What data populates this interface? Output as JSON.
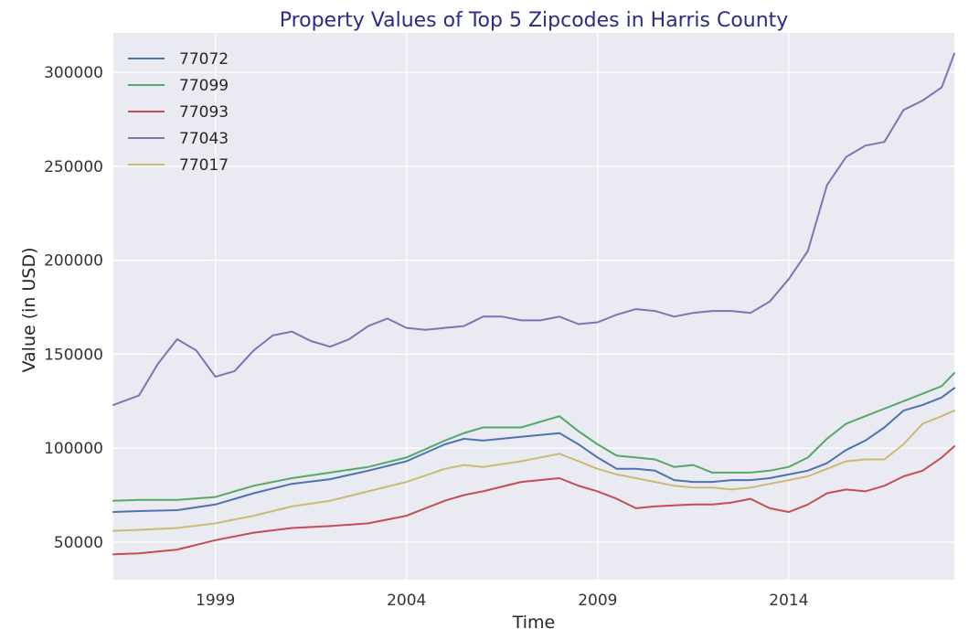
{
  "chart_data": {
    "type": "line",
    "title": "Property Values of Top 5 Zipcodes in Harris County",
    "xlabel": "Time",
    "ylabel": "Value (in USD)",
    "xlim": [
      1996.33,
      2018.33
    ],
    "ylim": [
      30000,
      321000
    ],
    "xticks": [
      1999,
      2004,
      2009,
      2014
    ],
    "xtick_labels": [
      "1999",
      "2004",
      "2009",
      "2014"
    ],
    "yticks": [
      50000,
      100000,
      150000,
      200000,
      250000,
      300000
    ],
    "ytick_labels": [
      "50000",
      "100000",
      "150000",
      "200000",
      "250000",
      "300000"
    ],
    "grid": true,
    "legend_position": "top-left",
    "colors": {
      "background": "#eaeaf2",
      "grid": "#ffffff",
      "title": "#2b2b8a"
    },
    "series": [
      {
        "name": "77072",
        "color": "#4c72b0",
        "points": [
          [
            1996.33,
            66000
          ],
          [
            1997,
            66500
          ],
          [
            1998,
            67000
          ],
          [
            1999,
            70000
          ],
          [
            2000,
            76000
          ],
          [
            2001,
            81000
          ],
          [
            2002,
            83500
          ],
          [
            2003,
            88000
          ],
          [
            2004,
            93000
          ],
          [
            2005,
            102000
          ],
          [
            2005.5,
            105000
          ],
          [
            2006,
            104000
          ],
          [
            2007,
            106000
          ],
          [
            2008,
            108000
          ],
          [
            2008.5,
            102000
          ],
          [
            2009,
            95000
          ],
          [
            2009.5,
            89000
          ],
          [
            2010,
            89000
          ],
          [
            2010.5,
            88000
          ],
          [
            2011,
            83000
          ],
          [
            2011.5,
            82000
          ],
          [
            2012,
            82000
          ],
          [
            2012.5,
            83000
          ],
          [
            2013,
            83000
          ],
          [
            2013.5,
            84000
          ],
          [
            2014,
            86000
          ],
          [
            2014.5,
            88000
          ],
          [
            2015,
            92000
          ],
          [
            2015.5,
            99000
          ],
          [
            2016,
            104000
          ],
          [
            2016.5,
            111000
          ],
          [
            2017,
            120000
          ],
          [
            2017.5,
            123000
          ],
          [
            2018,
            127000
          ],
          [
            2018.33,
            132000
          ]
        ]
      },
      {
        "name": "77099",
        "color": "#55a868",
        "points": [
          [
            1996.33,
            72000
          ],
          [
            1997,
            72500
          ],
          [
            1998,
            72500
          ],
          [
            1999,
            74000
          ],
          [
            2000,
            80000
          ],
          [
            2001,
            84000
          ],
          [
            2002,
            87000
          ],
          [
            2003,
            90000
          ],
          [
            2004,
            95000
          ],
          [
            2005,
            104000
          ],
          [
            2005.5,
            108000
          ],
          [
            2006,
            111000
          ],
          [
            2007,
            111000
          ],
          [
            2008,
            117000
          ],
          [
            2008.5,
            109000
          ],
          [
            2009,
            102000
          ],
          [
            2009.5,
            96000
          ],
          [
            2010,
            95000
          ],
          [
            2010.5,
            94000
          ],
          [
            2011,
            90000
          ],
          [
            2011.5,
            91000
          ],
          [
            2012,
            87000
          ],
          [
            2012.5,
            87000
          ],
          [
            2013,
            87000
          ],
          [
            2013.5,
            88000
          ],
          [
            2014,
            90000
          ],
          [
            2014.5,
            95000
          ],
          [
            2015,
            105000
          ],
          [
            2015.5,
            113000
          ],
          [
            2016,
            117000
          ],
          [
            2016.5,
            121000
          ],
          [
            2017,
            125000
          ],
          [
            2017.5,
            129000
          ],
          [
            2018,
            133000
          ],
          [
            2018.33,
            140000
          ]
        ]
      },
      {
        "name": "77093",
        "color": "#c44e52",
        "points": [
          [
            1996.33,
            43500
          ],
          [
            1997,
            44000
          ],
          [
            1998,
            46000
          ],
          [
            1999,
            51000
          ],
          [
            2000,
            55000
          ],
          [
            2001,
            57500
          ],
          [
            2002,
            58500
          ],
          [
            2003,
            60000
          ],
          [
            2004,
            64000
          ],
          [
            2005,
            72000
          ],
          [
            2005.5,
            75000
          ],
          [
            2006,
            77000
          ],
          [
            2007,
            82000
          ],
          [
            2008,
            84000
          ],
          [
            2008.5,
            80000
          ],
          [
            2009,
            77000
          ],
          [
            2009.5,
            73000
          ],
          [
            2010,
            68000
          ],
          [
            2010.5,
            69000
          ],
          [
            2011,
            69500
          ],
          [
            2011.5,
            70000
          ],
          [
            2012,
            70000
          ],
          [
            2012.5,
            71000
          ],
          [
            2013,
            73000
          ],
          [
            2013.5,
            68000
          ],
          [
            2014,
            66000
          ],
          [
            2014.5,
            70000
          ],
          [
            2015,
            76000
          ],
          [
            2015.5,
            78000
          ],
          [
            2016,
            77000
          ],
          [
            2016.5,
            80000
          ],
          [
            2017,
            85000
          ],
          [
            2017.5,
            88000
          ],
          [
            2018,
            95000
          ],
          [
            2018.33,
            101000
          ]
        ]
      },
      {
        "name": "77043",
        "color": "#8172b2",
        "points": [
          [
            1996.33,
            123000
          ],
          [
            1997,
            128000
          ],
          [
            1997.5,
            145000
          ],
          [
            1998,
            158000
          ],
          [
            1998.5,
            152000
          ],
          [
            1999,
            138000
          ],
          [
            1999.5,
            141000
          ],
          [
            2000,
            152000
          ],
          [
            2000.5,
            160000
          ],
          [
            2001,
            162000
          ],
          [
            2001.5,
            157000
          ],
          [
            2002,
            154000
          ],
          [
            2002.5,
            158000
          ],
          [
            2003,
            165000
          ],
          [
            2003.5,
            169000
          ],
          [
            2004,
            164000
          ],
          [
            2004.5,
            163000
          ],
          [
            2005,
            164000
          ],
          [
            2005.5,
            165000
          ],
          [
            2006,
            170000
          ],
          [
            2006.5,
            170000
          ],
          [
            2007,
            168000
          ],
          [
            2007.5,
            168000
          ],
          [
            2008,
            170000
          ],
          [
            2008.5,
            166000
          ],
          [
            2009,
            167000
          ],
          [
            2009.5,
            171000
          ],
          [
            2010,
            174000
          ],
          [
            2010.5,
            173000
          ],
          [
            2011,
            170000
          ],
          [
            2011.5,
            172000
          ],
          [
            2012,
            173000
          ],
          [
            2012.5,
            173000
          ],
          [
            2013,
            172000
          ],
          [
            2013.5,
            178000
          ],
          [
            2014,
            190000
          ],
          [
            2014.5,
            205000
          ],
          [
            2015,
            240000
          ],
          [
            2015.5,
            255000
          ],
          [
            2016,
            261000
          ],
          [
            2016.5,
            263000
          ],
          [
            2017,
            280000
          ],
          [
            2017.5,
            285000
          ],
          [
            2018,
            292000
          ],
          [
            2018.33,
            310000
          ]
        ]
      },
      {
        "name": "77017",
        "color": "#ccb974",
        "points": [
          [
            1996.33,
            56000
          ],
          [
            1997,
            56500
          ],
          [
            1998,
            57500
          ],
          [
            1999,
            60000
          ],
          [
            2000,
            64000
          ],
          [
            2001,
            69000
          ],
          [
            2002,
            72000
          ],
          [
            2003,
            77000
          ],
          [
            2004,
            82000
          ],
          [
            2005,
            89000
          ],
          [
            2005.5,
            91000
          ],
          [
            2006,
            90000
          ],
          [
            2007,
            93000
          ],
          [
            2008,
            97000
          ],
          [
            2008.5,
            93000
          ],
          [
            2009,
            89000
          ],
          [
            2009.5,
            86000
          ],
          [
            2010,
            84000
          ],
          [
            2010.5,
            82000
          ],
          [
            2011,
            80000
          ],
          [
            2011.5,
            79000
          ],
          [
            2012,
            79000
          ],
          [
            2012.5,
            78000
          ],
          [
            2013,
            79000
          ],
          [
            2013.5,
            81000
          ],
          [
            2014,
            83000
          ],
          [
            2014.5,
            85000
          ],
          [
            2015,
            89000
          ],
          [
            2015.5,
            93000
          ],
          [
            2016,
            94000
          ],
          [
            2016.5,
            94000
          ],
          [
            2017,
            102000
          ],
          [
            2017.5,
            113000
          ],
          [
            2018,
            117000
          ],
          [
            2018.33,
            120000
          ]
        ]
      }
    ]
  }
}
